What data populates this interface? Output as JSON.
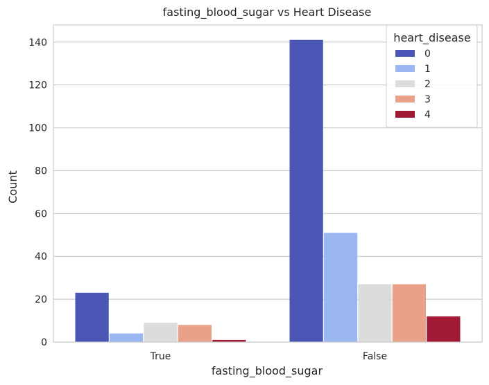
{
  "chart_data": {
    "type": "bar",
    "title": "fasting_blood_sugar vs Heart Disease",
    "xlabel": "fasting_blood_sugar",
    "ylabel": "Count",
    "categories": [
      "True",
      "False"
    ],
    "ylim": [
      0,
      148
    ],
    "yticks": [
      0,
      20,
      40,
      60,
      80,
      100,
      120,
      140
    ],
    "grid": true,
    "legend": {
      "title": "heart_disease",
      "placement": "top-right"
    },
    "series": [
      {
        "name": "0",
        "color": "#4a55b4",
        "values": [
          23,
          141
        ]
      },
      {
        "name": "1",
        "color": "#9bb7f2",
        "values": [
          4,
          51
        ]
      },
      {
        "name": "2",
        "color": "#dcdcdc",
        "values": [
          9,
          27
        ]
      },
      {
        "name": "3",
        "color": "#e9a289",
        "values": [
          8,
          27
        ]
      },
      {
        "name": "4",
        "color": "#a11a35",
        "values": [
          1,
          12
        ]
      }
    ]
  }
}
